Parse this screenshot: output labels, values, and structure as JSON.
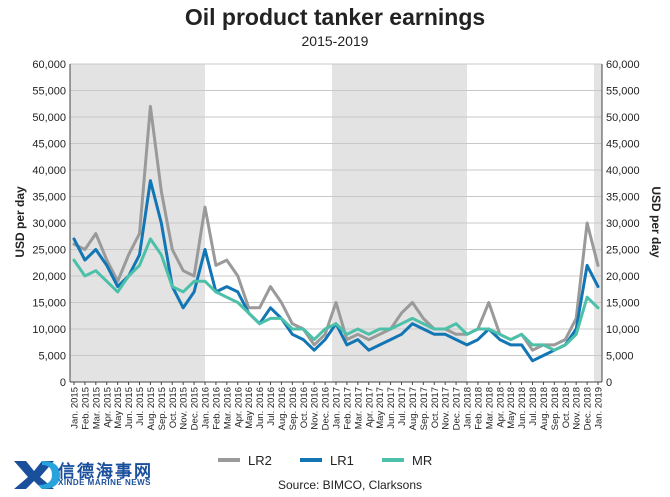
{
  "chart_data": {
    "type": "line",
    "title": "Oil product tanker earnings",
    "subtitle": "2015-2019",
    "ylabel_left": "USD per day",
    "ylabel_right": "USD per day",
    "ylim": [
      0,
      60000
    ],
    "yticks": [
      "0",
      "5,000",
      "10,000",
      "15,000",
      "20,000",
      "25,000",
      "30,000",
      "35,000",
      "40,000",
      "45,000",
      "50,000",
      "55,000",
      "60,000"
    ],
    "xticks": [
      "Jan. 2015",
      "Feb. 2015",
      "Mar. 2015",
      "Apr. 2015",
      "May 2015",
      "Jun. 2015",
      "Jul. 2015",
      "Aug. 2015",
      "Sep. 2015",
      "Oct. 2015",
      "Nov. 2015",
      "Dec. 2015",
      "Jan. 2016",
      "Feb. 2016",
      "Mar. 2016",
      "Apr. 2016",
      "May 2016",
      "Jun. 2016",
      "Jul. 2016",
      "Aug. 2016",
      "Sep. 2016",
      "Oct. 2016",
      "Nov. 2016",
      "Dec. 2016",
      "Jan. 2017",
      "Feb. 2017",
      "Mar. 2017",
      "Apr. 2017",
      "May 2017",
      "Jun. 2017",
      "Jul. 2017",
      "Aug. 2017",
      "Sep. 2017",
      "Oct. 2017",
      "Nov. 2017",
      "Dec. 2017",
      "Jan. 2018",
      "Feb. 2018",
      "Mar. 2018",
      "Apr. 2018",
      "May 2018",
      "Jun. 2018",
      "Jul. 2018",
      "Aug. 2018",
      "Sep. 2018",
      "Oct. 2018",
      "Nov. 2018",
      "Dec. 2018",
      "Jan. 2019"
    ],
    "grid": true,
    "legend_position": "bottom",
    "shaded_periods": [
      [
        "Jan. 2015",
        "Jan. 2016"
      ],
      [
        "Jan. 2017",
        "Jan. 2018"
      ],
      [
        "Jan. 2019",
        "Jan. 2019"
      ]
    ],
    "series": [
      {
        "name": "LR2",
        "color": "#9a9a9a",
        "values": [
          26000,
          25000,
          28000,
          23000,
          19000,
          24000,
          28000,
          52000,
          36000,
          25000,
          21000,
          20000,
          33000,
          22000,
          23000,
          20000,
          14000,
          14000,
          18000,
          15000,
          11000,
          10000,
          7000,
          9000,
          15000,
          8000,
          9000,
          8000,
          9000,
          10000,
          13000,
          15000,
          12000,
          10000,
          10000,
          9000,
          9000,
          10000,
          15000,
          9000,
          8000,
          9000,
          6000,
          7000,
          7000,
          8000,
          12000,
          30000,
          22000
        ]
      },
      {
        "name": "LR1",
        "color": "#1276b5",
        "values": [
          27000,
          23000,
          25000,
          22000,
          18000,
          20000,
          24000,
          38000,
          30000,
          18000,
          14000,
          17000,
          25000,
          17000,
          18000,
          17000,
          13000,
          11000,
          14000,
          12000,
          9000,
          8000,
          6000,
          8000,
          11000,
          7000,
          8000,
          6000,
          7000,
          8000,
          9000,
          11000,
          10000,
          9000,
          9000,
          8000,
          7000,
          8000,
          10000,
          8000,
          7000,
          7000,
          4000,
          5000,
          6000,
          7000,
          10000,
          22000,
          18000
        ]
      },
      {
        "name": "MR",
        "color": "#4cc0a8",
        "values": [
          23000,
          20000,
          21000,
          19000,
          17000,
          20000,
          22000,
          27000,
          24000,
          18000,
          17000,
          19000,
          19000,
          17000,
          16000,
          15000,
          13000,
          11000,
          12000,
          12000,
          10000,
          10000,
          8000,
          10000,
          11000,
          9000,
          10000,
          9000,
          10000,
          10000,
          11000,
          12000,
          11000,
          10000,
          10000,
          11000,
          9000,
          10000,
          10000,
          9000,
          8000,
          9000,
          7000,
          7000,
          6000,
          7000,
          9000,
          16000,
          14000
        ]
      }
    ]
  },
  "source": "Source: BIMCO, Clarksons",
  "logo": {
    "name_cn": "信德海事网",
    "name_en": "XINDE MARINE NEWS"
  }
}
